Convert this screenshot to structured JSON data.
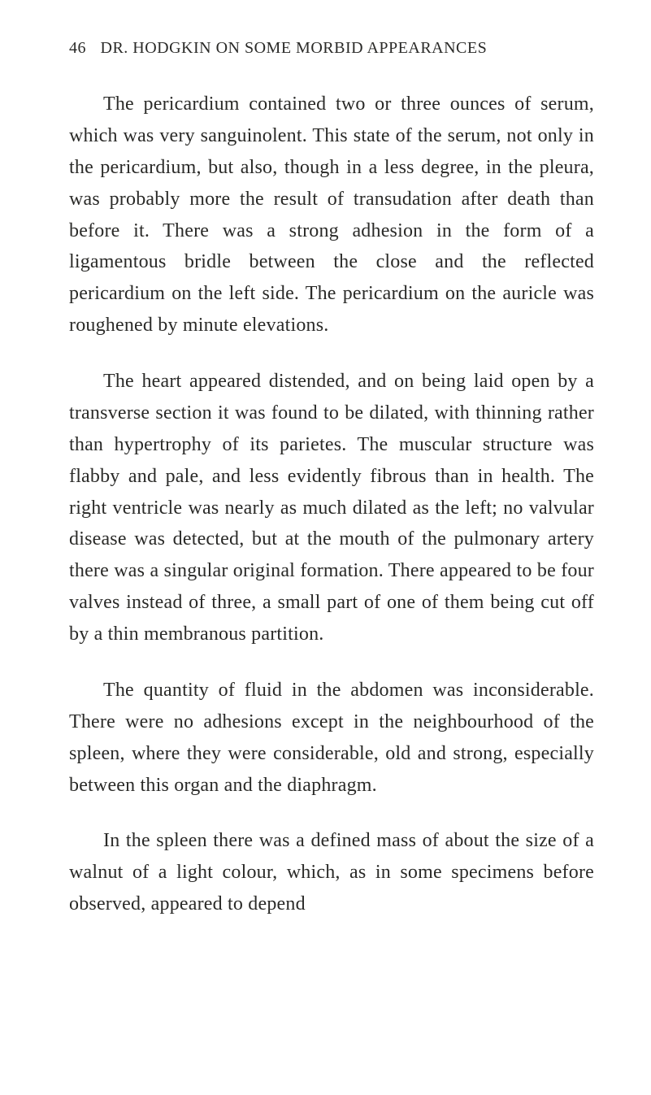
{
  "typography": {
    "body_font": "Georgia, serif",
    "body_fontsize": 24,
    "header_fontsize": 20,
    "line_height": 1.62,
    "text_color": "#2a2a28",
    "background_color": "#ffffff",
    "text_indent": 42
  },
  "header": {
    "page_number": "46",
    "text": "DR. HODGKIN ON SOME MORBID APPEARANCES"
  },
  "paragraphs": [
    "The pericardium contained two or three ounces of serum, which was very sanguinolent. This state of the serum, not only in the pericardium, but also, though in a less degree, in the pleura, was probably more the result of transudation after death than before it. There was a strong adhesion in the form of a ligamentous bridle between the close and the reflected pericardium on the left side. The pericardium on the auricle was roughened by minute elevations.",
    "The heart appeared distended, and on being laid open by a transverse section it was found to be dilated, with thinning rather than hypertrophy of its parietes. The muscular structure was flabby and pale, and less evidently fibrous than in health. The right ventricle was nearly as much dilated as the left; no valvular disease was detected, but at the mouth of the pulmonary artery there was a singular original formation. There appeared to be four valves instead of three, a small part of one of them being cut off by a thin membranous partition.",
    "The quantity of fluid in the abdomen was inconsiderable. There were no adhesions except in the neighbourhood of the spleen, where they were considerable, old and strong, especially between this organ and the diaphragm.",
    "In the spleen there was a defined mass of about the size of a walnut of a light colour, which, as in some specimens before observed, appeared to depend"
  ]
}
